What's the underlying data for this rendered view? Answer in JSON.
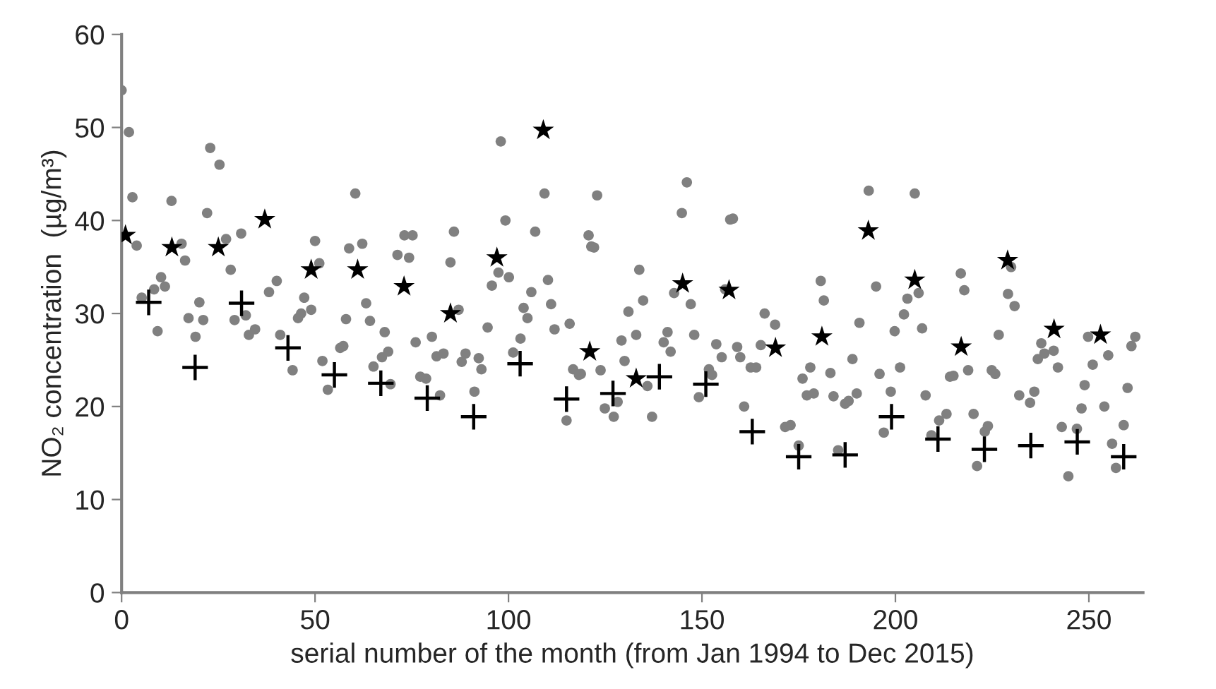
{
  "chart_data": {
    "type": "scatter",
    "xlabel": "serial number of the month (from Jan 1994 to Dec 2015)",
    "ylabel": "NO₂ concentration  (µg/m³)",
    "xlim": [
      0,
      264
    ],
    "xticks": [
      0,
      50,
      100,
      150,
      200,
      250
    ],
    "ylim": [
      0,
      60
    ],
    "yticks": [
      0,
      10,
      20,
      30,
      40,
      50,
      60
    ],
    "grid": false,
    "series": [
      {
        "color": "#808080",
        "marker": "circle",
        "x": [
          0,
          1.9,
          2.8,
          3.9,
          5.2,
          8.4,
          9.3,
          10.2,
          11.2,
          12.9,
          15.5,
          16.4,
          17.3,
          19.1,
          20.1,
          21.1,
          22.1,
          22.9,
          25.3,
          27.0,
          28.2,
          29.2,
          30.9,
          32.1,
          32.9,
          34.5,
          38.1,
          40.1,
          41.0,
          44.2,
          45.6,
          46.4,
          47.2,
          49,
          50,
          51.1,
          51.9,
          53.3,
          56.5,
          57.3,
          58,
          58.8,
          60.4,
          62.2,
          63.2,
          64.2,
          65.1,
          67.3,
          68,
          68.9,
          69.5,
          71.3,
          73.1,
          74.3,
          75.2,
          76,
          77.2,
          78.7,
          80.2,
          81.4,
          82.3,
          83.2,
          85,
          85.9,
          87.1,
          87.9,
          88.9,
          91.2,
          92.3,
          93,
          94.6,
          95.7,
          97.4,
          98.0,
          99.2,
          100.1,
          101.2,
          103.1,
          103.9,
          104.9,
          105.9,
          106.9,
          109.3,
          110.2,
          111,
          111.9,
          115,
          115.8,
          116.7,
          118.2,
          118.7,
          120.7,
          121.4,
          122.1,
          122.9,
          123.8,
          124.9,
          127.2,
          128.2,
          129.2,
          130,
          131,
          133,
          133.8,
          134.8,
          135.9,
          137.1,
          140.1,
          141.1,
          141.9,
          142.8,
          144.8,
          146.1,
          147.1,
          148,
          149.2,
          151.8,
          152.6,
          153.7,
          155.1,
          156,
          157.3,
          158,
          159.1,
          159.9,
          160.9,
          162.6,
          164,
          165.2,
          166.2,
          168.9,
          171.5,
          172.9,
          175,
          176,
          177.1,
          178,
          178.9,
          180.7,
          181.5,
          183.2,
          184,
          185.2,
          187,
          187.9,
          188.9,
          190,
          190.7,
          193.1,
          195,
          195.9,
          197,
          198.8,
          199.8,
          201.2,
          202.2,
          203.1,
          205,
          206,
          206.9,
          207.8,
          209.3,
          211.3,
          213.2,
          214.1,
          215,
          216.9,
          217.8,
          218.8,
          220.2,
          221.1,
          223.1,
          223.9,
          224.9,
          225.8,
          226.7,
          229.1,
          229.9,
          230.8,
          232,
          234.8,
          235.9,
          236.8,
          237.7,
          238.5,
          240.9,
          242,
          243,
          244.7,
          246.9,
          248.1,
          248.9,
          249.8,
          251,
          254,
          255,
          256,
          257,
          259,
          260,
          261,
          262
        ],
        "values": [
          54.0,
          49.5,
          42.5,
          37.3,
          31.7,
          32.6,
          28.1,
          33.9,
          32.9,
          42.1,
          37.5,
          35.7,
          29.5,
          27.5,
          31.2,
          29.3,
          40.8,
          47.8,
          46.0,
          38.0,
          34.7,
          29.3,
          38.6,
          29.8,
          27.7,
          28.3,
          32.3,
          33.5,
          27.7,
          23.9,
          29.5,
          30.0,
          31.7,
          30.4,
          37.8,
          35.4,
          24.9,
          21.8,
          26.3,
          26.5,
          29.4,
          37.0,
          42.9,
          37.5,
          31.1,
          29.2,
          24.3,
          25.3,
          28.0,
          25.9,
          22.4,
          36.3,
          38.4,
          36.0,
          38.4,
          26.9,
          23.2,
          23.0,
          27.5,
          25.4,
          21.2,
          25.7,
          35.5,
          38.8,
          30.4,
          24.8,
          25.7,
          21.6,
          25.2,
          24.0,
          28.5,
          33.0,
          34.4,
          48.5,
          40.0,
          33.9,
          25.8,
          27.3,
          30.6,
          29.5,
          32.3,
          38.8,
          42.9,
          33.6,
          31.0,
          28.3,
          18.5,
          28.9,
          24.0,
          23.4,
          23.5,
          38.4,
          37.2,
          37.1,
          42.7,
          23.9,
          19.8,
          18.9,
          20.5,
          27.1,
          24.9,
          30.2,
          27.7,
          34.7,
          31.4,
          22.2,
          18.9,
          26.9,
          28.0,
          25.9,
          32.2,
          40.8,
          44.1,
          31.0,
          27.7,
          21.0,
          24.0,
          23.4,
          26.7,
          25.3,
          32.6,
          40.1,
          40.2,
          26.4,
          25.3,
          20.0,
          24.2,
          24.2,
          26.6,
          30.0,
          28.8,
          17.8,
          18.0,
          15.8,
          23.0,
          21.2,
          24.2,
          21.4,
          33.5,
          31.4,
          23.6,
          21.1,
          15.3,
          20.3,
          20.6,
          25.1,
          21.4,
          29.0,
          43.2,
          32.9,
          23.5,
          17.2,
          21.6,
          28.1,
          24.2,
          29.9,
          31.6,
          42.9,
          32.2,
          28.4,
          21.2,
          16.9,
          18.5,
          19.2,
          23.2,
          23.3,
          34.3,
          32.5,
          23.9,
          19.2,
          13.6,
          17.3,
          17.9,
          23.9,
          23.5,
          27.7,
          32.1,
          35.0,
          30.8,
          21.2,
          20.4,
          21.6,
          25.1,
          26.8,
          25.7,
          26.0,
          24.2,
          17.8,
          12.5,
          17.6,
          19.8,
          22.3,
          27.5,
          24.5,
          20.0,
          25.5,
          16.0,
          13.4,
          18.0,
          22.0,
          26.5,
          27.5
        ]
      },
      {
        "color": "#000000",
        "marker": "star",
        "x": [
          1,
          13,
          25,
          37,
          49,
          61,
          73,
          85,
          97,
          109,
          121,
          133,
          145,
          157,
          169,
          181,
          193,
          205,
          217,
          229,
          241,
          253
        ],
        "values": [
          38.4,
          37.1,
          37.1,
          40.1,
          34.7,
          34.7,
          32.9,
          30.0,
          36.0,
          49.7,
          25.9,
          23.0,
          33.2,
          32.5,
          26.3,
          27.5,
          38.9,
          33.6,
          26.4,
          35.7,
          28.3,
          27.7
        ]
      },
      {
        "color": "#000000",
        "marker": "cross",
        "x": [
          7,
          19,
          31,
          43,
          55,
          67,
          79,
          91,
          103,
          115,
          127,
          139,
          151,
          163,
          175,
          187,
          199,
          211,
          223,
          235,
          247,
          259
        ],
        "values": [
          31.2,
          24.2,
          31.1,
          26.3,
          23.4,
          22.5,
          20.9,
          18.9,
          24.6,
          20.8,
          21.4,
          23.2,
          22.4,
          17.3,
          14.6,
          14.8,
          18.9,
          16.5,
          15.4,
          15.8,
          16.2,
          14.6
        ]
      }
    ]
  }
}
